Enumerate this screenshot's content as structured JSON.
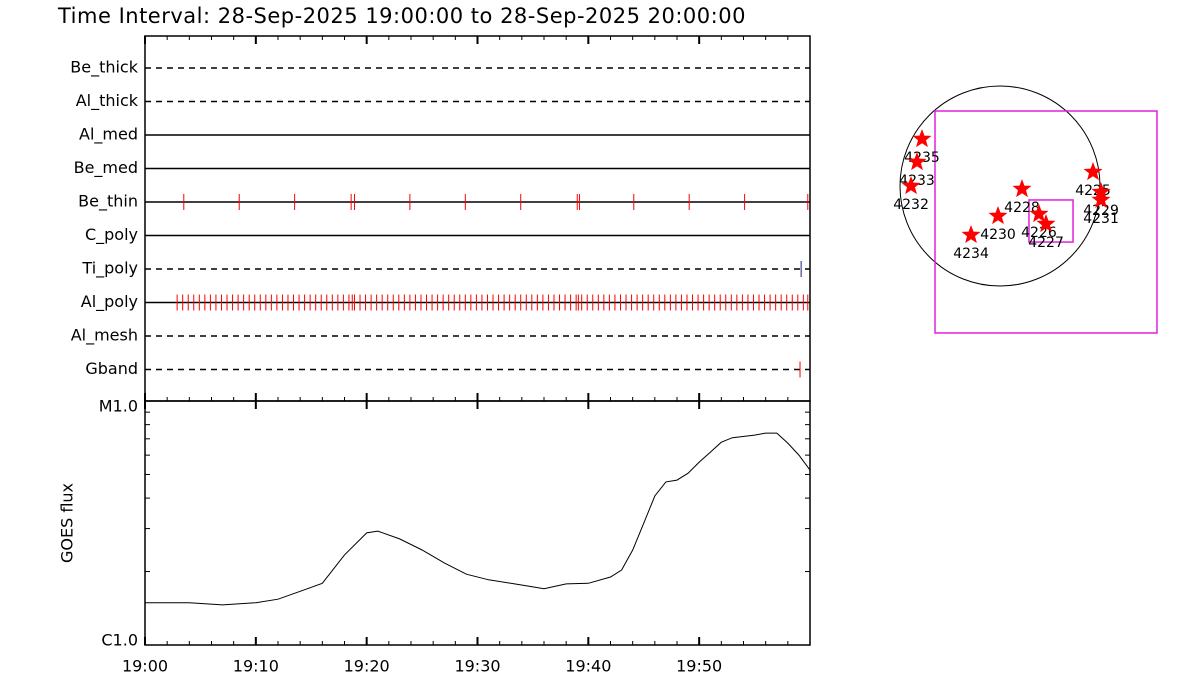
{
  "chart_data": [
    {
      "type": "timeline",
      "title": "Time Interval: 28-Sep-2025 19:00:00 to 28-Sep-2025 20:00:00",
      "xlim": [
        0,
        60
      ],
      "categories": [
        "Be_thick",
        "Al_thick",
        "Al_med",
        "Be_med",
        "Be_thin",
        "C_poly",
        "Ti_poly",
        "Al_poly",
        "Al_mesh",
        "Gband"
      ],
      "line_styles": [
        "dashed",
        "dashed",
        "solid",
        "solid",
        "solid",
        "solid",
        "dashed",
        "solid",
        "dashed",
        "dashed"
      ],
      "event_colors": [
        "#ff0000",
        "#ff0000",
        "#ff0000",
        "#ff0000",
        "#ff0000",
        "#ff0000",
        "#1a237e",
        "#ff0000",
        "#ff0000",
        "#ff0000"
      ],
      "events": [
        [],
        [],
        [],
        [],
        [
          3.5,
          8.5,
          13.5,
          18.6,
          18.9,
          23.9,
          28.9,
          33.9,
          39.0,
          39.2,
          44.1,
          49.1,
          54.1,
          59.8
        ],
        [],
        [
          59.2
        ],
        [
          2.9,
          3.4,
          3.9,
          4.4,
          4.9,
          5.4,
          5.9,
          6.4,
          6.9,
          7.4,
          7.9,
          8.4,
          8.9,
          9.4,
          9.9,
          10.4,
          10.9,
          11.4,
          11.9,
          12.4,
          12.9,
          13.4,
          13.9,
          14.4,
          14.9,
          15.4,
          15.9,
          16.4,
          16.9,
          17.4,
          17.9,
          18.4,
          18.7,
          18.9,
          19.4,
          19.9,
          20.4,
          20.9,
          21.4,
          21.9,
          22.4,
          22.9,
          23.4,
          23.9,
          24.4,
          24.9,
          25.4,
          25.9,
          26.4,
          26.9,
          27.4,
          27.9,
          28.4,
          28.9,
          29.4,
          29.9,
          30.4,
          30.9,
          31.4,
          31.9,
          32.4,
          32.9,
          33.4,
          33.9,
          34.4,
          34.9,
          35.4,
          35.9,
          36.4,
          36.9,
          37.4,
          37.9,
          38.4,
          38.9,
          39.1,
          39.4,
          39.9,
          40.4,
          40.9,
          41.4,
          41.9,
          42.4,
          42.9,
          43.4,
          43.9,
          44.4,
          44.9,
          45.4,
          45.9,
          46.4,
          46.9,
          47.4,
          47.9,
          48.4,
          48.9,
          49.4,
          49.9,
          50.4,
          50.9,
          51.4,
          51.9,
          52.4,
          52.9,
          53.4,
          53.9,
          54.4,
          54.9,
          55.4,
          55.9,
          56.4,
          56.9,
          57.4,
          57.9,
          58.4,
          58.9,
          59.4,
          59.8
        ],
        [],
        [
          59.1
        ]
      ]
    },
    {
      "type": "line",
      "ylabel": "GOES flux",
      "log": true,
      "color": "#000000",
      "x": [
        0,
        4,
        7,
        10,
        12,
        14,
        16,
        18,
        20,
        21,
        23,
        25,
        27,
        29,
        31,
        33,
        35,
        36,
        38,
        40,
        42,
        43,
        44,
        45,
        46,
        47,
        48,
        49,
        50,
        51,
        52,
        53,
        55,
        56,
        57,
        58,
        59,
        60
      ],
      "values": [
        1.49e-06,
        1.49e-06,
        1.46e-06,
        1.49e-06,
        1.54e-06,
        1.66e-06,
        1.79e-06,
        2.34e-06,
        2.88e-06,
        2.93e-06,
        2.72e-06,
        2.45e-06,
        2.17e-06,
        1.95e-06,
        1.85e-06,
        1.79e-06,
        1.73e-06,
        1.7e-06,
        1.78e-06,
        1.79e-06,
        1.9e-06,
        2.03e-06,
        2.45e-06,
        3.16e-06,
        4.08e-06,
        4.66e-06,
        4.74e-06,
        5.06e-06,
        5.62e-06,
        6.17e-06,
        6.78e-06,
        7.07e-06,
        7.25e-06,
        7.39e-06,
        7.39e-06,
        6.72e-06,
        6e-06,
        5.21e-06
      ],
      "xlim": [
        0,
        60
      ],
      "xticks": [
        {
          "value": 0,
          "label": "19:00"
        },
        {
          "value": 10,
          "label": "19:10"
        },
        {
          "value": 20,
          "label": "19:20"
        },
        {
          "value": 30,
          "label": "19:30"
        },
        {
          "value": 40,
          "label": "19:40"
        },
        {
          "value": 50,
          "label": "19:50"
        }
      ],
      "minor_xticks": [
        2,
        4,
        6,
        8,
        12,
        14,
        16,
        18,
        22,
        24,
        26,
        28,
        32,
        34,
        36,
        38,
        42,
        44,
        46,
        48,
        52,
        54,
        56,
        58
      ],
      "ylim": [
        1e-06,
        1e-05
      ],
      "yticks": [
        {
          "value": 1e-06,
          "label": "C1.0"
        },
        {
          "value": 1e-05,
          "label": "M1.0"
        }
      ],
      "minor_yticks": [
        2e-06,
        3e-06,
        4e-06,
        5e-06,
        6e-06,
        7e-06,
        8e-06,
        9e-06
      ]
    },
    {
      "type": "map",
      "marker_color": "#ff0000",
      "points": {
        "labels": [
          "4235",
          "4233",
          "4232",
          "4228",
          "4230",
          "4234",
          "4226",
          "4227",
          "4225",
          "4229",
          "4231"
        ],
        "x": [
          -749,
          -797,
          -854,
          211,
          -19,
          -278,
          374,
          442,
          893,
          970,
          970
        ],
        "y": [
          451,
          230,
          0,
          -29,
          -288,
          -470,
          -269,
          -365,
          134,
          -58,
          -134
        ]
      },
      "boxes": [
        {
          "color": "#e020e0",
          "xlim": [
            -624,
            1507
          ],
          "ylim": [
            -1411,
            720
          ]
        },
        {
          "color": "#e020e0",
          "xlim": [
            278,
            701
          ],
          "ylim": [
            -538,
            -134
          ]
        }
      ]
    }
  ]
}
